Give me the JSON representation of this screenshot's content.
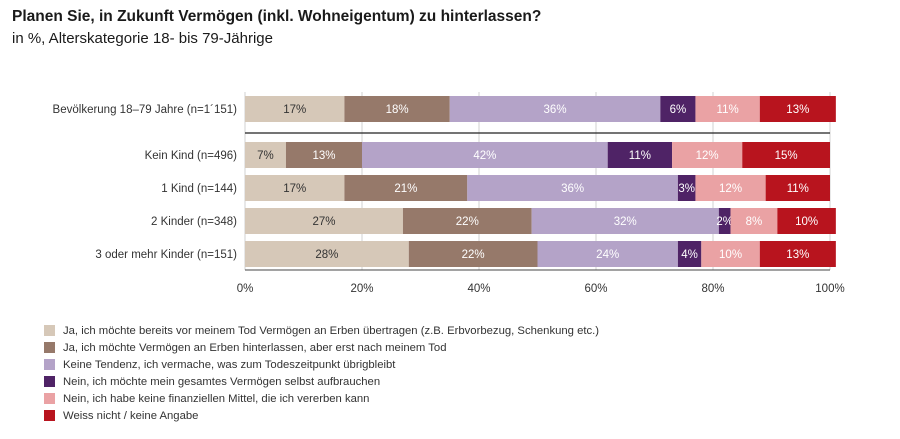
{
  "title": "Planen Sie, in Zukunft Vermögen (inkl. Wohneigentum) zu hinterlassen?",
  "subtitle": "in %, Alterskategorie 18- bis 79-Jährige",
  "chart_data": {
    "type": "bar",
    "orientation": "horizontal",
    "stacked": true,
    "categories": [
      "Bevölkerung 18–79 Jahre (n=1´151)",
      "Kein Kind (n=496)",
      "1 Kind (n=144)",
      "2 Kinder (n=348)",
      "3 oder mehr Kinder (n=151)"
    ],
    "series": [
      {
        "name": "Ja, ich möchte bereits vor meinem Tod Vermögen an Erben übertragen (z.B. Erbvorbezug, Schenkung etc.)",
        "color": "#d6c8b8",
        "text_color": "#333333",
        "values": [
          17,
          7,
          17,
          27,
          28
        ]
      },
      {
        "name": "Ja, ich möchte Vermögen an Erben hinterlassen, aber erst nach meinem Tod",
        "color": "#96796a",
        "text_color": "#ffffff",
        "values": [
          18,
          13,
          21,
          22,
          22
        ]
      },
      {
        "name": "Keine Tendenz, ich vermache, was zum Todeszeitpunkt übrigbleibt",
        "color": "#b4a3c8",
        "text_color": "#ffffff",
        "values": [
          36,
          42,
          36,
          32,
          24
        ]
      },
      {
        "name": "Nein, ich möchte mein gesamtes Vermögen selbst aufbrauchen",
        "color": "#4f2366",
        "text_color": "#ffffff",
        "values": [
          6,
          11,
          3,
          2,
          4
        ]
      },
      {
        "name": "Nein, ich habe keine finanziellen Mittel, die ich vererben kann",
        "color": "#eaa2a4",
        "text_color": "#ffffff",
        "values": [
          11,
          12,
          12,
          8,
          10
        ]
      },
      {
        "name": "Weiss nicht / keine Angabe",
        "color": "#b8141e",
        "text_color": "#ffffff",
        "values": [
          13,
          15,
          11,
          10,
          13
        ]
      }
    ],
    "xlim": [
      0,
      100
    ],
    "xticks": [
      "0%",
      "20%",
      "40%",
      "60%",
      "80%",
      "100%"
    ],
    "grid": true,
    "legend_position": "bottom-left"
  }
}
